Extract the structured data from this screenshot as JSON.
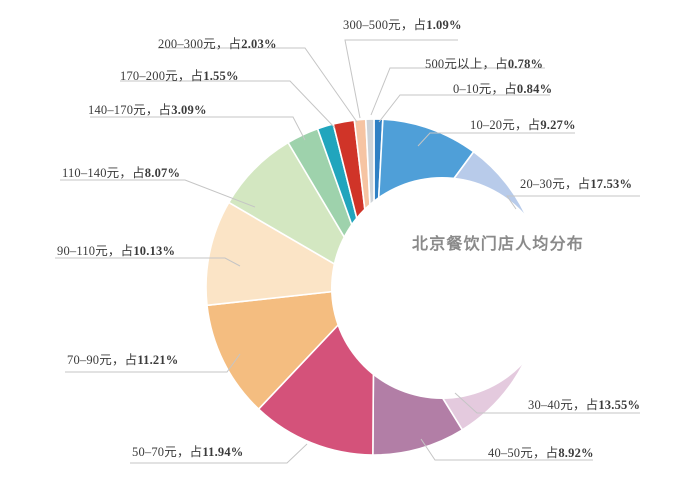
{
  "chart_data": {
    "type": "pie",
    "title": "北京餐饮门店人均分布",
    "center_label": "北京餐饮门店人均分布",
    "legend_position": "none",
    "unit": "%",
    "categories": [
      "0–10元",
      "10–20元",
      "20–30元",
      "30–40元",
      "40–50元",
      "50–70元",
      "70–90元",
      "90–110元",
      "110–140元",
      "140–170元",
      "170–200元",
      "200–300元",
      "300–500元",
      "500元以上"
    ],
    "values": [
      0.84,
      9.27,
      17.53,
      13.55,
      8.92,
      11.94,
      11.21,
      10.13,
      8.07,
      3.09,
      1.55,
      2.03,
      1.09,
      0.78
    ],
    "labels": [
      "0–10元，占0.84%",
      "10–20元，占9.27%",
      "20–30元，占17.53%",
      "30–40元，占13.55%",
      "40–50元，占8.92%",
      "50–70元，占11.94%",
      "70–90元，占11.21%",
      "90–110元，占10.13%",
      "110–140元，占8.07%",
      "140–170元，占3.09%",
      "170–200元，占1.55%",
      "200–300元，占2.03%",
      "300–500元，占1.09%",
      "500元以上，占0.78%"
    ],
    "colors": [
      "#2f80c4",
      "#4f9fd8",
      "#b8cbea",
      "#e4cade",
      "#b27ea6",
      "#d4527a",
      "#f4bd80",
      "#fbe4c6",
      "#d3e7c1",
      "#9ed2ac",
      "#21a5bd",
      "#d03428",
      "#f6c4a3",
      "#cdd3d8"
    ],
    "slice_border_color": "#ffffff",
    "label_line_color": "#c5c5c5",
    "label_text_color": "#3b3b3b",
    "title_color": "#8a8a8a"
  }
}
